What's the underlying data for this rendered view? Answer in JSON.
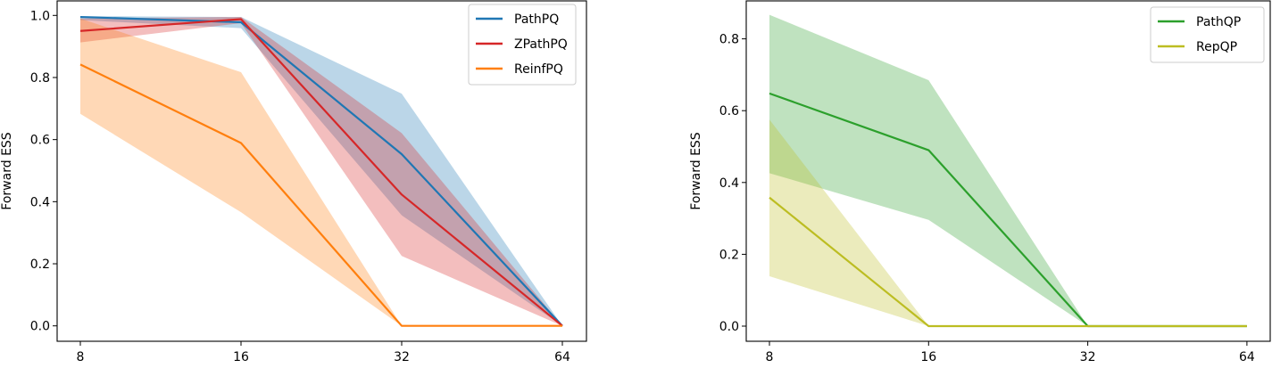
{
  "chart_data": [
    {
      "type": "line",
      "title": "",
      "xlabel": "",
      "ylabel": "Forward ESS",
      "xscale": "log2",
      "x": [
        8,
        16,
        32,
        64
      ],
      "xticks": [
        "8",
        "16",
        "32",
        "64"
      ],
      "yticks": [
        "0.0",
        "0.2",
        "0.4",
        "0.6",
        "0.8",
        "1.0"
      ],
      "ylim": [
        -0.05,
        1.05
      ],
      "legend_position": "top-right",
      "series": [
        {
          "name": "PathPQ",
          "color": "#1f77b4",
          "values": [
            0.995,
            0.978,
            0.553,
            0.0
          ],
          "upper": [
            0.998,
            0.995,
            0.748,
            0.0
          ],
          "lower": [
            0.985,
            0.959,
            0.356,
            0.0
          ]
        },
        {
          "name": "ZPathPQ",
          "color": "#d62728",
          "values": [
            0.95,
            0.988,
            0.423,
            0.0
          ],
          "upper": [
            0.99,
            0.995,
            0.621,
            0.0
          ],
          "lower": [
            0.913,
            0.975,
            0.225,
            0.0
          ]
        },
        {
          "name": "ReinfPQ",
          "color": "#ff7f0e",
          "values": [
            0.842,
            0.589,
            0.0,
            0.0
          ],
          "upper": [
            0.99,
            0.817,
            0.0,
            0.0
          ],
          "lower": [
            0.683,
            0.366,
            0.0,
            0.0
          ]
        }
      ]
    },
    {
      "type": "line",
      "title": "",
      "xlabel": "",
      "ylabel": "Forward ESS",
      "xscale": "log2",
      "x": [
        8,
        16,
        32,
        64
      ],
      "xticks": [
        "8",
        "16",
        "32",
        "64"
      ],
      "yticks": [
        "0.0",
        "0.2",
        "0.4",
        "0.6",
        "0.8"
      ],
      "ylim": [
        -0.04,
        0.91
      ],
      "legend_position": "top-right",
      "series": [
        {
          "name": "PathQP",
          "color": "#2ca02c",
          "values": [
            0.648,
            0.49,
            0.0,
            0.0
          ],
          "upper": [
            0.867,
            0.685,
            0.0,
            0.0
          ],
          "lower": [
            0.426,
            0.296,
            0.0,
            0.0
          ]
        },
        {
          "name": "RepQP",
          "color": "#bcbd22",
          "values": [
            0.358,
            0.0,
            0.0,
            0.0
          ],
          "upper": [
            0.575,
            0.0,
            0.0,
            0.0
          ],
          "lower": [
            0.139,
            0.0,
            0.0,
            0.0
          ]
        }
      ]
    }
  ]
}
